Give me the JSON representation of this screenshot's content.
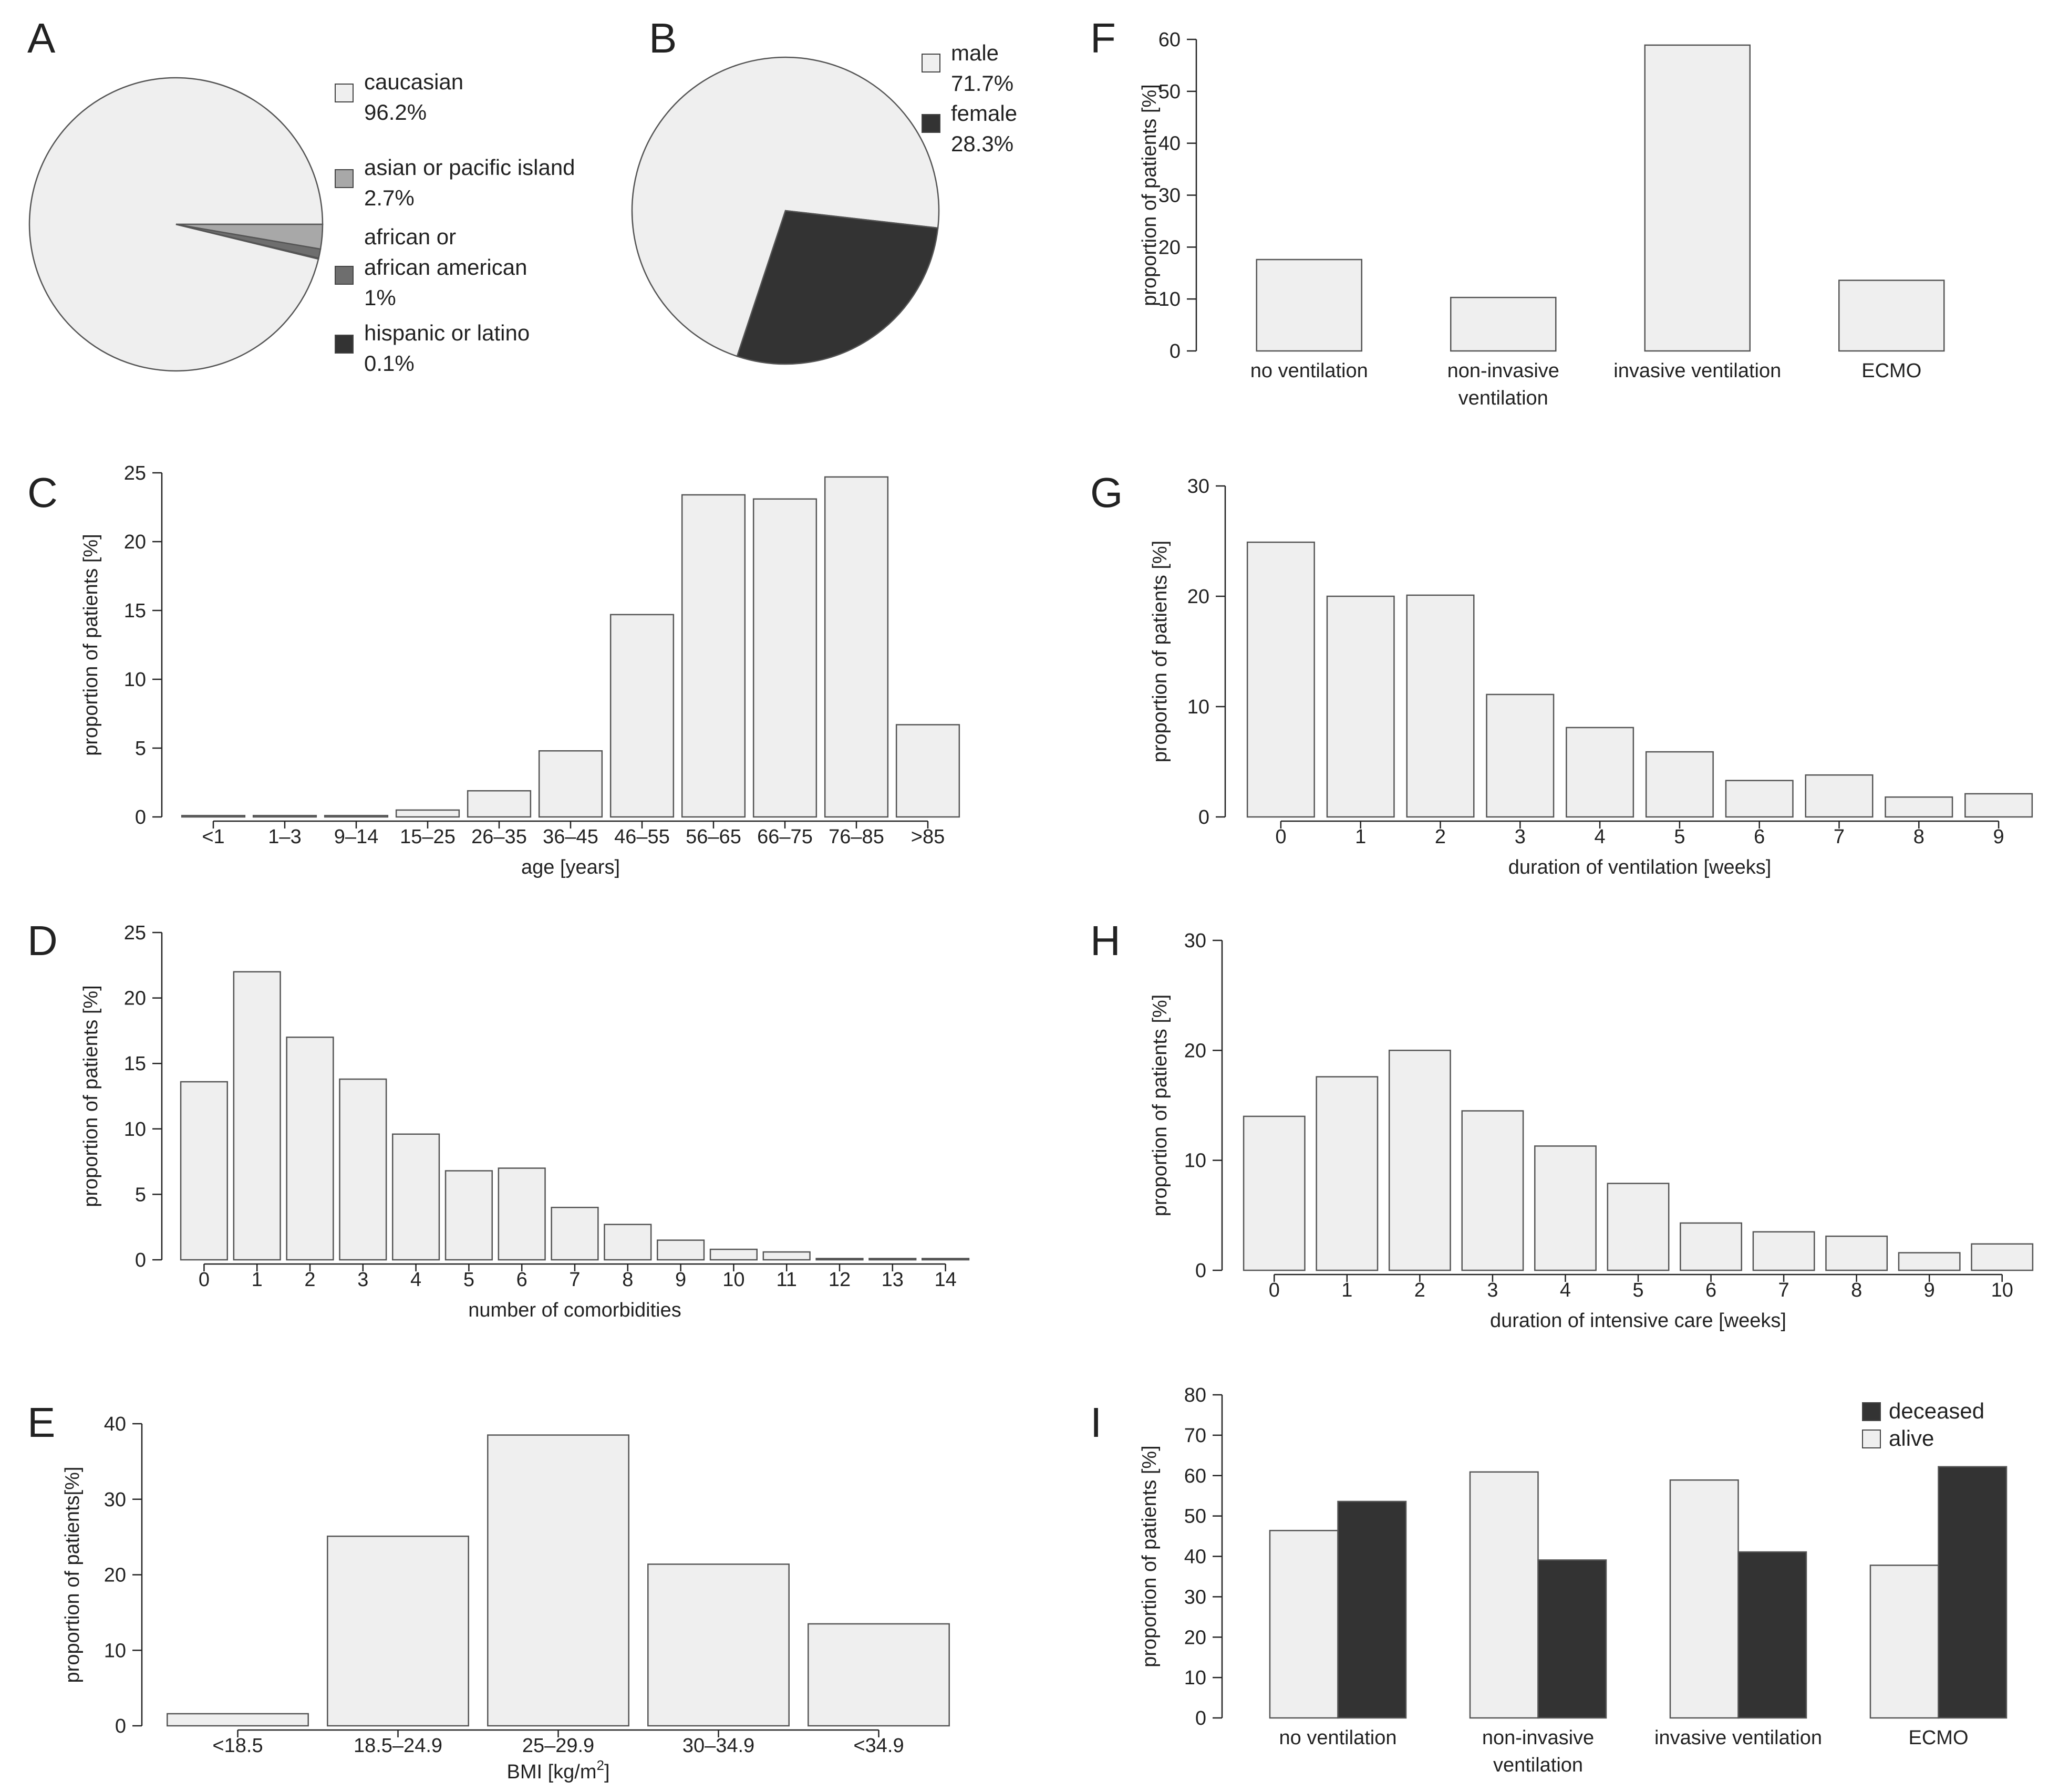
{
  "colors": {
    "light": "#efefef",
    "dark": "#333333",
    "mid": "#a8a8a8",
    "midDark": "#6e6e6e",
    "stroke": "#555555"
  },
  "chart_data": [
    {
      "panel": "A",
      "type": "pie",
      "slices": [
        {
          "label": "caucasian",
          "value": 96.2,
          "value_text": "96.2%",
          "color": "#efefef"
        },
        {
          "label": "asian or pacific island",
          "value": 2.7,
          "value_text": "2.7%",
          "color": "#a8a8a8"
        },
        {
          "label": "african or african american",
          "label_lines": [
            "african or",
            "african american"
          ],
          "value": 1,
          "value_text": "1%",
          "color": "#6e6e6e"
        },
        {
          "label": "hispanic or latino",
          "value": 0.1,
          "value_text": "0.1%",
          "color": "#333333"
        }
      ],
      "legend": "right"
    },
    {
      "panel": "B",
      "type": "pie",
      "slices": [
        {
          "label": "male",
          "value": 71.7,
          "value_text": "71.7%",
          "color": "#efefef"
        },
        {
          "label": "female",
          "value": 28.3,
          "value_text": "28.3%",
          "color": "#333333"
        }
      ],
      "legend": "top-right"
    },
    {
      "panel": "C",
      "type": "bar",
      "xlabel": "age [years]",
      "ylabel": "proportion of patients [%]",
      "ylim": [
        0,
        25
      ],
      "yticks": [
        0,
        5,
        10,
        15,
        20,
        25
      ],
      "categories": [
        "<1",
        "1–3",
        "9–14",
        "15–25",
        "26–35",
        "36–45",
        "46–55",
        "56–65",
        "66–75",
        "76–85",
        ">85"
      ],
      "values": [
        0.1,
        0.1,
        0.1,
        0.5,
        1.9,
        4.8,
        14.7,
        23.4,
        23.1,
        24.7,
        6.7
      ]
    },
    {
      "panel": "D",
      "type": "bar",
      "xlabel": "number of comorbidities",
      "ylabel": "proportion of patients [%]",
      "ylim": [
        0,
        25
      ],
      "yticks": [
        0,
        5,
        10,
        15,
        20,
        25
      ],
      "categories": [
        "0",
        "1",
        "2",
        "3",
        "4",
        "5",
        "6",
        "7",
        "8",
        "9",
        "10",
        "11",
        "12",
        "13",
        "14"
      ],
      "values": [
        13.6,
        22.0,
        17.0,
        13.8,
        9.6,
        6.8,
        7.0,
        4.0,
        2.7,
        1.5,
        0.8,
        0.6,
        0.1,
        0.1,
        0.1
      ]
    },
    {
      "panel": "E",
      "type": "bar",
      "xlabel": "BMI [kg/m",
      "xlabel_sup": "2",
      "xlabel_end": "]",
      "ylabel": "proportion of patients[%]",
      "ylim": [
        0,
        40
      ],
      "yticks": [
        0,
        10,
        20,
        30,
        40
      ],
      "categories": [
        "<18.5",
        "18.5–24.9",
        "25–29.9",
        "30–34.9",
        "<34.9"
      ],
      "values": [
        1.6,
        25.1,
        38.5,
        21.4,
        13.5
      ]
    },
    {
      "panel": "F",
      "type": "bar",
      "xlabel": "",
      "ylabel": "proportion of patients [%]",
      "ylim": [
        0,
        60
      ],
      "yticks": [
        0,
        10,
        20,
        30,
        40,
        50,
        60
      ],
      "categories": [
        "no ventilation",
        "non-invasive ventilation",
        "invasive ventilation",
        "ECMO"
      ],
      "category_lines": [
        [
          "no ventilation"
        ],
        [
          "non-invasive",
          "ventilation"
        ],
        [
          "invasive ventilation"
        ],
        [
          "ECMO"
        ]
      ],
      "values": [
        17.6,
        10.3,
        58.9,
        13.6
      ]
    },
    {
      "panel": "G",
      "type": "bar",
      "xlabel": "duration of ventilation [weeks]",
      "ylabel": "proportion of patients [%]",
      "ylim": [
        0,
        30
      ],
      "yticks": [
        0,
        10,
        20,
        30
      ],
      "categories": [
        "0",
        "1",
        "2",
        "3",
        "4",
        "5",
        "6",
        "7",
        "8",
        "9"
      ],
      "values": [
        24.9,
        20.0,
        20.1,
        11.1,
        8.1,
        5.9,
        3.3,
        3.8,
        1.8,
        2.1
      ]
    },
    {
      "panel": "H",
      "type": "bar",
      "xlabel": "duration of intensive care [weeks]",
      "ylabel": "proportion of patients [%]",
      "ylim": [
        0,
        30
      ],
      "yticks": [
        0,
        10,
        20,
        30
      ],
      "categories": [
        "0",
        "1",
        "2",
        "3",
        "4",
        "5",
        "6",
        "7",
        "8",
        "9",
        "10"
      ],
      "values": [
        14.0,
        17.6,
        20.0,
        14.5,
        11.3,
        7.9,
        4.3,
        3.5,
        3.1,
        1.6,
        2.4
      ]
    },
    {
      "panel": "I",
      "type": "bar",
      "xlabel": "",
      "ylabel": "proportion of patients [%]",
      "ylim": [
        0,
        80
      ],
      "yticks": [
        0,
        10,
        20,
        30,
        40,
        50,
        60,
        70,
        80
      ],
      "categories": [
        "no ventilation",
        "non-invasive ventilation",
        "invasive ventilation",
        "ECMO"
      ],
      "category_lines": [
        [
          "no ventilation"
        ],
        [
          "non-invasive",
          "ventilation"
        ],
        [
          "invasive ventilation"
        ],
        [
          "ECMO"
        ]
      ],
      "series": [
        {
          "name": "alive",
          "color": "#efefef",
          "values": [
            46.4,
            60.9,
            58.9,
            37.8
          ]
        },
        {
          "name": "deceased",
          "color": "#333333",
          "values": [
            53.6,
            39.1,
            41.1,
            62.2
          ]
        }
      ],
      "legend": "top-right"
    }
  ]
}
